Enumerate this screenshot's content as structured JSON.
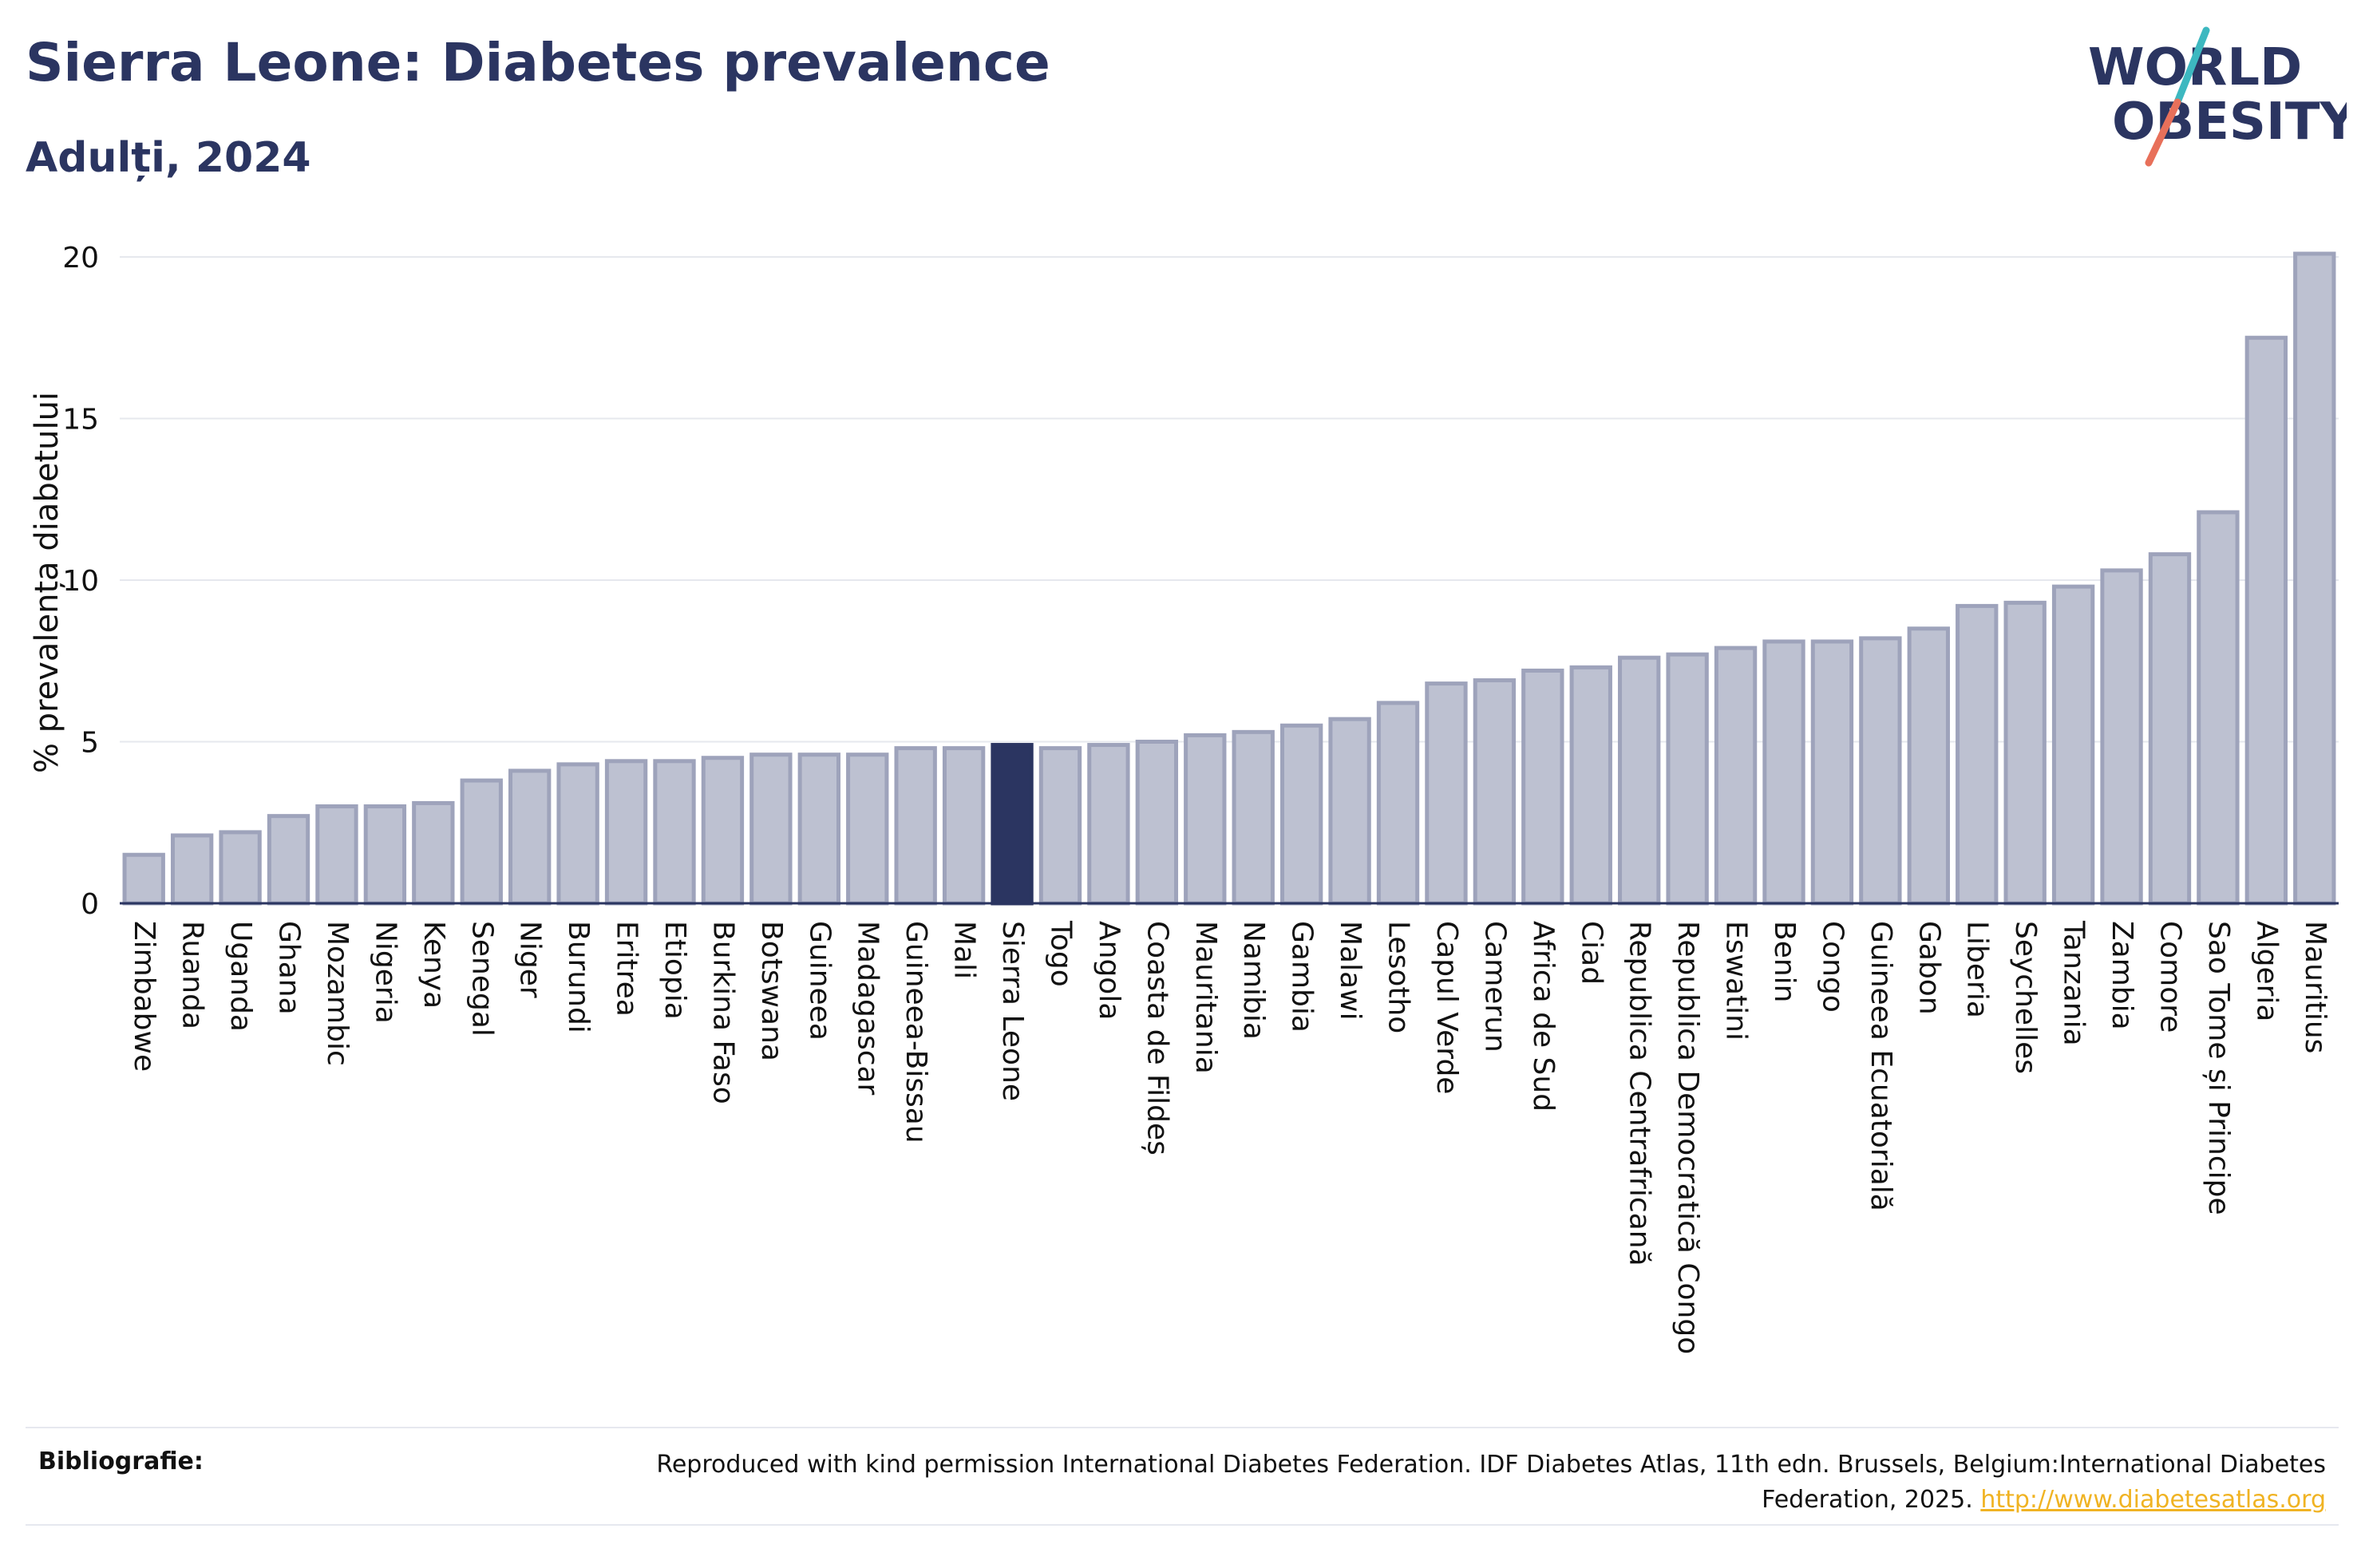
{
  "header": {
    "title": "Sierra Leone: Diabetes prevalence",
    "subtitle": "Adulți, 2024"
  },
  "logo": {
    "line1": "WORLD",
    "line2": "OBESITY",
    "colors": {
      "text": "#2b3561",
      "slash_top": "#3db8c0",
      "slash_bottom": "#e8705a"
    }
  },
  "footer": {
    "label": "Bibliografie:",
    "text": "Reproduced with kind permission International Diabetes Federation. IDF Diabetes Atlas, 11th edn. Brussels, Belgium:International Diabetes Federation, 2025.",
    "link": "http://www.diabetesatlas.org"
  },
  "colors": {
    "bar": "#bdc1d1",
    "bar_stroke": "#9ea3bb",
    "highlight": "#2b3561",
    "grid": "#e6e8ee",
    "axis": "#2b3561"
  },
  "chart_data": {
    "type": "bar",
    "ylabel": "% prevalența diabetului",
    "ylim": [
      0,
      20
    ],
    "yticks": [
      0,
      5,
      10,
      15,
      20
    ],
    "grid": true,
    "highlight": "Sierra Leone",
    "categories": [
      "Zimbabwe",
      "Ruanda",
      "Uganda",
      "Ghana",
      "Mozambic",
      "Nigeria",
      "Kenya",
      "Senegal",
      "Niger",
      "Burundi",
      "Eritrea",
      "Etiopia",
      "Burkina Faso",
      "Botswana",
      "Guineea",
      "Madagascar",
      "Guineea-Bissau",
      "Mali",
      "Sierra Leone",
      "Togo",
      "Angola",
      "Coasta de Fildeș",
      "Mauritania",
      "Namibia",
      "Gambia",
      "Malawi",
      "Lesotho",
      "Capul Verde",
      "Camerun",
      "Africa de Sud",
      "Ciad",
      "Republica Centrafricană",
      "Republica Democratică Congo",
      "Eswatini",
      "Benin",
      "Congo",
      "Guineea Ecuatorială",
      "Gabon",
      "Liberia",
      "Seychelles",
      "Tanzania",
      "Zambia",
      "Comore",
      "Sao Tome și Principe",
      "Algeria",
      "Mauritius"
    ],
    "values": [
      1.5,
      2.1,
      2.2,
      2.7,
      3.0,
      3.0,
      3.1,
      3.8,
      4.1,
      4.3,
      4.4,
      4.4,
      4.5,
      4.6,
      4.6,
      4.6,
      4.8,
      4.8,
      4.9,
      4.8,
      4.9,
      5.0,
      5.2,
      5.3,
      5.5,
      5.7,
      6.2,
      6.8,
      6.9,
      7.2,
      7.3,
      7.6,
      7.7,
      7.9,
      8.1,
      8.1,
      8.2,
      8.5,
      9.2,
      9.3,
      9.8,
      10.3,
      10.8,
      12.1,
      17.5,
      20.1
    ]
  }
}
